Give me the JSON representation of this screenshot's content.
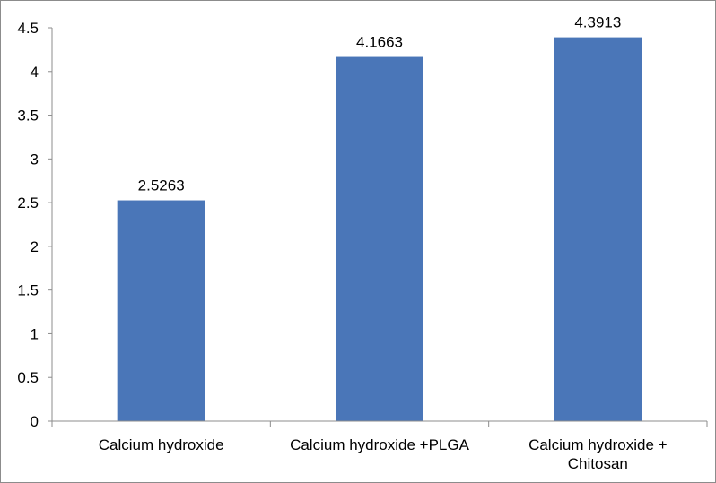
{
  "chart_data": {
    "type": "bar",
    "categories": [
      [
        "Calcium hydroxide"
      ],
      [
        "Calcium hydroxide +PLGA"
      ],
      [
        "Calcium hydroxide +",
        "Chitosan"
      ]
    ],
    "values": [
      2.5263,
      4.1663,
      4.3913
    ],
    "data_labels": [
      "2.5263",
      "4.1663",
      "4.3913"
    ],
    "yticks": [
      "0",
      "0.5",
      "1",
      "1.5",
      "2",
      "2.5",
      "3",
      "3.5",
      "4",
      "4.5"
    ],
    "ylim": [
      0,
      4.5
    ],
    "grid": false,
    "legend": "none",
    "bar_color": "#4a76b8",
    "axis_color": "#8c8c8c"
  }
}
